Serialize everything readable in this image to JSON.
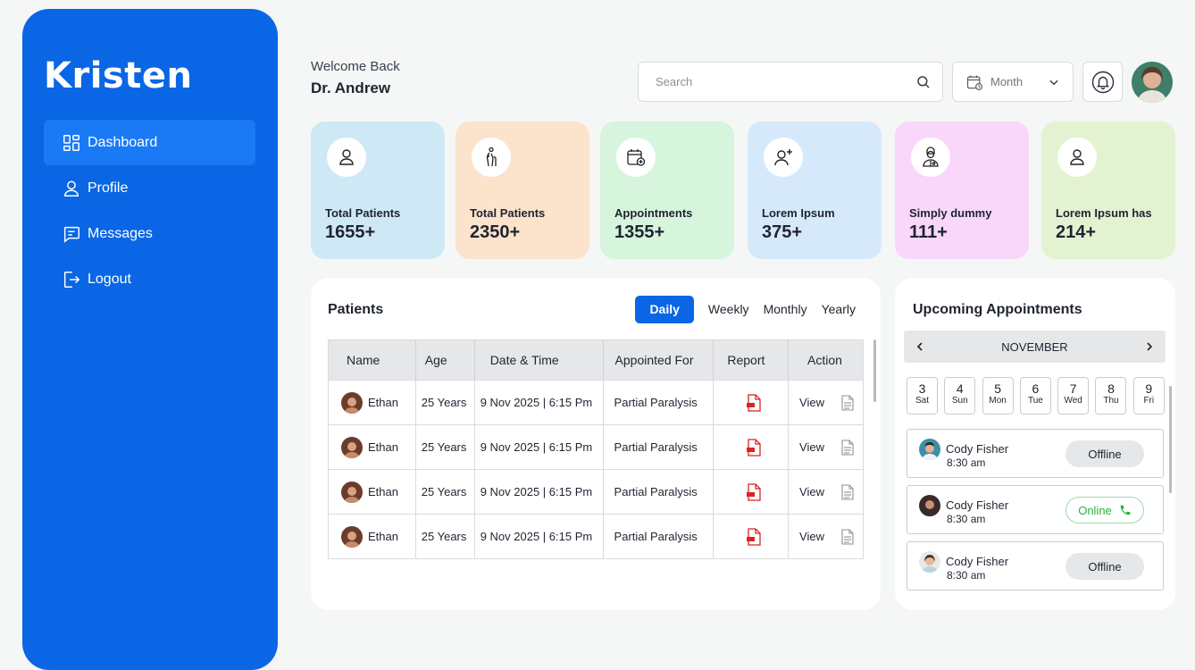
{
  "sidebar": {
    "brand": "Kristen",
    "items": [
      {
        "label": "Dashboard",
        "icon": "grid-icon",
        "active": true
      },
      {
        "label": "Profile",
        "icon": "user-icon"
      },
      {
        "label": "Messages",
        "icon": "chat-icon"
      },
      {
        "label": "Logout",
        "icon": "logout-icon"
      }
    ]
  },
  "header": {
    "greeting": "Welcome Back",
    "user": "Dr. Andrew",
    "search_placeholder": "Search",
    "period": "Month"
  },
  "stats": [
    {
      "label": "Total Patients",
      "value": "1655+",
      "color": "#cfe8f5"
    },
    {
      "label": "Total Patients",
      "value": "2350+",
      "color": "#fbe3cc"
    },
    {
      "label": "Appointments",
      "value": "1355+",
      "color": "#d7f5dc"
    },
    {
      "label": "Lorem Ipsum",
      "value": "375+",
      "color": "#d6e9fb"
    },
    {
      "label": "Simply dummy",
      "value": "111+",
      "color": "#f8d7fb"
    },
    {
      "label": "Lorem Ipsum has",
      "value": "214+",
      "color": "#e3f3d2"
    }
  ],
  "patients": {
    "title": "Patients",
    "filters": [
      "Daily",
      "Weekly",
      "Monthly",
      "Yearly"
    ],
    "columns": [
      "Name",
      "Age",
      "Date & Time",
      "Appointed For",
      "Report",
      "Action"
    ],
    "rows": [
      {
        "name": "Ethan",
        "age": "25 Years",
        "datetime": "9 Nov 2025 | 6:15 Pm",
        "for": "Partial Paralysis",
        "action": "View"
      },
      {
        "name": "Ethan",
        "age": "25 Years",
        "datetime": "9 Nov 2025 | 6:15 Pm",
        "for": "Partial Paralysis",
        "action": "View"
      },
      {
        "name": "Ethan",
        "age": "25 Years",
        "datetime": "9 Nov 2025 | 6:15 Pm",
        "for": "Partial Paralysis",
        "action": "View"
      },
      {
        "name": "Ethan",
        "age": "25 Years",
        "datetime": "9 Nov 2025 | 6:15 Pm",
        "for": "Partial Paralysis",
        "action": "View"
      }
    ]
  },
  "appointments": {
    "title": "Upcoming Appointments",
    "month": "NOVEMBER",
    "days": [
      {
        "n": "3",
        "w": "Sat"
      },
      {
        "n": "4",
        "w": "Sun"
      },
      {
        "n": "5",
        "w": "Mon"
      },
      {
        "n": "6",
        "w": "Tue"
      },
      {
        "n": "7",
        "w": "Wed"
      },
      {
        "n": "8",
        "w": "Thu"
      },
      {
        "n": "9",
        "w": "Fri"
      }
    ],
    "list": [
      {
        "name": "Cody Fisher",
        "time": "8:30 am",
        "status": "Offline"
      },
      {
        "name": "Cody Fisher",
        "time": "8:30 am",
        "status": "Online"
      },
      {
        "name": "Cody Fisher",
        "time": "8:30 am",
        "status": "Offline"
      }
    ]
  },
  "colors": {
    "primary": "#0a66e4",
    "online": "#27b335"
  }
}
